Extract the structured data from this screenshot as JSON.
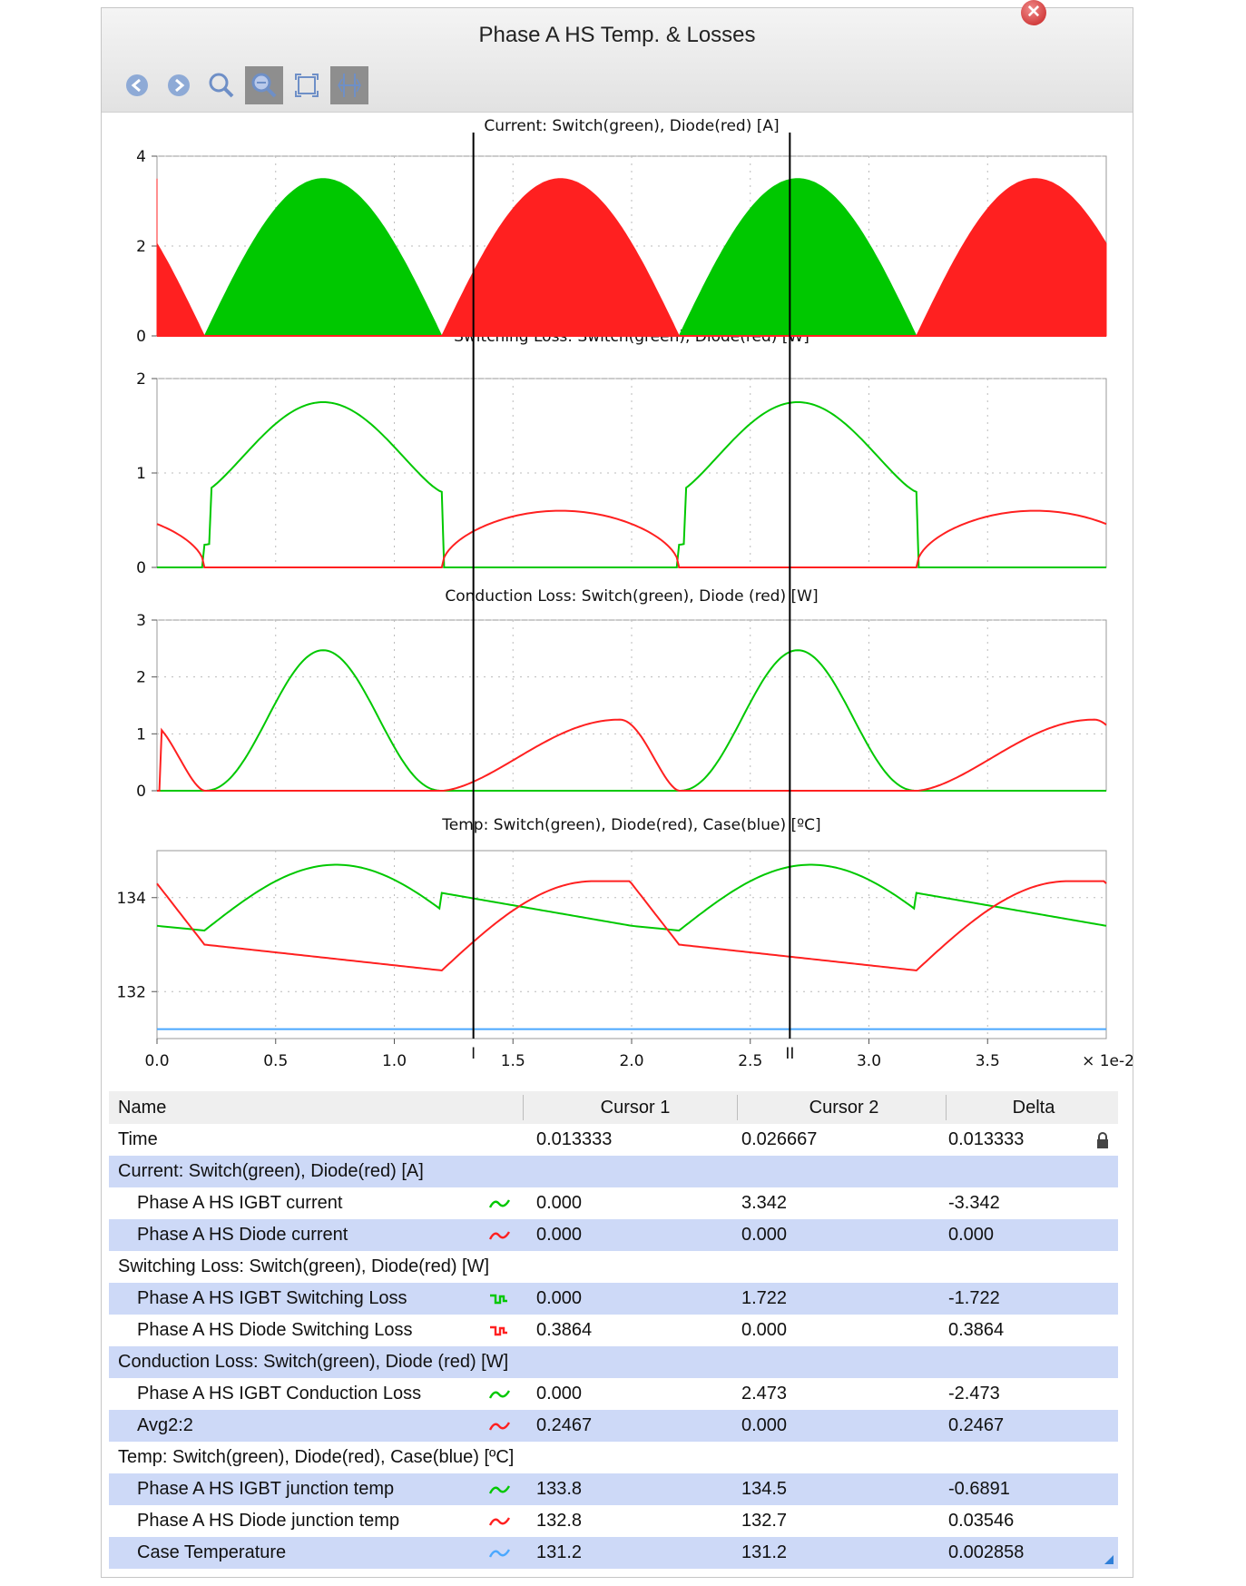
{
  "window": {
    "title": "Phase A HS Temp. & Losses"
  },
  "toolbar": {
    "buttons": [
      "back-icon",
      "forward-icon",
      "zoom-icon",
      "zoom-fit-icon",
      "fullscreen-icon",
      "cursor-icon"
    ]
  },
  "colors": {
    "switch": "#00c800",
    "diode": "#ff2020",
    "case": "#4aa8ff",
    "row_alt": "#cdd9f7",
    "cursor": "#000000"
  },
  "chart_data": [
    {
      "type": "line",
      "title": "Current: Switch(green), Diode(red) [A]",
      "xlim": [
        0.0,
        0.04
      ],
      "ylim": [
        0,
        4
      ],
      "yticks": [
        "0",
        "2",
        "4"
      ],
      "grid": true,
      "series": [
        {
          "name": "Phase A HS IGBT current",
          "color": "#00c800",
          "shape": "half-sine bursts (PWM fill)",
          "peak": 3.5,
          "intervals": [
            [
              0.002,
              0.012
            ],
            [
              0.022,
              0.032
            ]
          ]
        },
        {
          "name": "Phase A HS Diode current",
          "color": "#ff2020",
          "shape": "half-sine bursts (PWM fill)",
          "peak": 3.5,
          "intervals": [
            [
              -0.008,
              0.002
            ],
            [
              0.012,
              0.022
            ],
            [
              0.032,
              0.042
            ]
          ]
        }
      ]
    },
    {
      "type": "line",
      "title": "Switching Loss: Switch(green), Diode(red) [W]",
      "xlim": [
        0.0,
        0.04
      ],
      "ylim": [
        0,
        2
      ],
      "yticks": [
        "0",
        "1",
        "2"
      ],
      "grid": true,
      "series": [
        {
          "name": "Phase A HS IGBT Switching Loss",
          "color": "#00c800",
          "peak": 1.75
        },
        {
          "name": "Phase A HS Diode Switching Loss",
          "color": "#ff2020",
          "peak": 0.6
        }
      ]
    },
    {
      "type": "line",
      "title": "Conduction Loss: Switch(green), Diode (red) [W]",
      "xlim": [
        0.0,
        0.04
      ],
      "ylim": [
        0,
        3
      ],
      "yticks": [
        "0",
        "1",
        "2",
        "3"
      ],
      "grid": true,
      "series": [
        {
          "name": "Phase A HS IGBT Conduction Loss",
          "color": "#00c800",
          "peak": 2.47
        },
        {
          "name": "Avg2:2",
          "color": "#ff2020",
          "peak": 1.25
        }
      ]
    },
    {
      "type": "line",
      "title": "Temp: Switch(green), Diode(red), Case(blue) [ºC]",
      "xlim": [
        0.0,
        0.04
      ],
      "ylim": [
        131,
        135
      ],
      "yticks": [
        "132",
        "134"
      ],
      "grid": true,
      "xticks": [
        "0.0",
        "0.5",
        "1.0",
        "1.5",
        "2.0",
        "2.5",
        "3.0",
        "3.5"
      ],
      "xscale_label": "× 1e-2",
      "series": [
        {
          "name": "Phase A HS IGBT junction temp",
          "color": "#00c800",
          "range": [
            133.3,
            134.7
          ]
        },
        {
          "name": "Phase A HS Diode junction temp",
          "color": "#ff2020",
          "range": [
            132.4,
            134.4
          ]
        },
        {
          "name": "Case Temperature",
          "color": "#4aa8ff",
          "value": 131.2
        }
      ]
    }
  ],
  "cursors": {
    "c1_x": 0.013333,
    "c2_x": 0.026667,
    "c1_label": "I",
    "c2_label": "II"
  },
  "table": {
    "headers": {
      "name": "Name",
      "c1": "Cursor 1",
      "c2": "Cursor 2",
      "delta": "Delta"
    },
    "time_row": {
      "name": "Time",
      "c1": "0.013333",
      "c2": "0.026667",
      "delta": "0.013333"
    },
    "groups": [
      {
        "title": "Current: Switch(green), Diode(red) [A]",
        "rows": [
          {
            "name": "Phase A HS IGBT current",
            "icon": "sine-icon",
            "color": "#00c800",
            "c1": "0.000",
            "c2": "3.342",
            "delta": "-3.342"
          },
          {
            "name": "Phase A HS Diode current",
            "icon": "sine-icon",
            "color": "#ff2020",
            "c1": "0.000",
            "c2": "0.000",
            "delta": "0.000"
          }
        ]
      },
      {
        "title": "Switching Loss: Switch(green), Diode(red) [W]",
        "rows": [
          {
            "name": "Phase A HS IGBT Switching Loss",
            "icon": "step-icon",
            "color": "#00c800",
            "c1": "0.000",
            "c2": "1.722",
            "delta": "-1.722"
          },
          {
            "name": "Phase A HS Diode Switching Loss",
            "icon": "step-icon",
            "color": "#ff2020",
            "c1": "0.3864",
            "c2": "0.000",
            "delta": "0.3864"
          }
        ]
      },
      {
        "title": "Conduction Loss: Switch(green), Diode (red) [W]",
        "rows": [
          {
            "name": "Phase A HS IGBT Conduction Loss",
            "icon": "sine-icon",
            "color": "#00c800",
            "c1": "0.000",
            "c2": "2.473",
            "delta": "-2.473"
          },
          {
            "name": "Avg2:2",
            "icon": "sine-icon",
            "color": "#ff2020",
            "c1": "0.2467",
            "c2": "0.000",
            "delta": "0.2467"
          }
        ]
      },
      {
        "title": "Temp: Switch(green), Diode(red), Case(blue) [ºC]",
        "rows": [
          {
            "name": "Phase A HS IGBT junction temp",
            "icon": "sine-icon",
            "color": "#00c800",
            "c1": "133.8",
            "c2": "134.5",
            "delta": "-0.6891"
          },
          {
            "name": "Phase A HS Diode junction temp",
            "icon": "sine-icon",
            "color": "#ff2020",
            "c1": "132.8",
            "c2": "132.7",
            "delta": "0.03546"
          },
          {
            "name": "Case Temperature",
            "icon": "sine-icon",
            "color": "#4aa8ff",
            "c1": "131.2",
            "c2": "131.2",
            "delta": "0.002858"
          }
        ]
      }
    ]
  }
}
